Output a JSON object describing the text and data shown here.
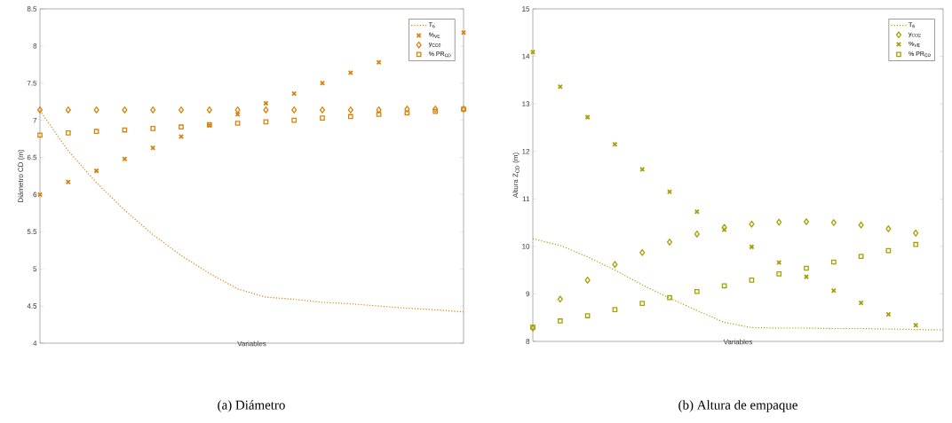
{
  "chart_data": [
    {
      "type": "scatter",
      "xlabel": "Variables",
      "ylabel": "Diámetro CD (m)",
      "annotations": [
        "(a) Diámetro"
      ],
      "categories": [
        null,
        null,
        null,
        null,
        null,
        null,
        null,
        null,
        null,
        null,
        null,
        null,
        null,
        null,
        null,
        null
      ],
      "ylim": [
        4,
        8.5
      ],
      "yticks": [
        4,
        4.5,
        5,
        5.5,
        6,
        6.5,
        7,
        7.5,
        8,
        8.5
      ],
      "grid": false,
      "legend": "top right",
      "series": [
        {
          "name": "T$_{6}$",
          "type": "line",
          "marker": "none",
          "line_style": "dotted",
          "color": "#d9820a",
          "values": [
            7.13,
            6.59,
            6.16,
            5.79,
            5.46,
            5.18,
            4.94,
            4.73,
            4.62,
            4.59,
            4.55,
            4.53,
            4.5,
            4.47,
            4.45,
            4.42
          ]
        },
        {
          "name": "%$_{VE}$",
          "marker": "cross",
          "color": "#d9820a",
          "values": [
            6.0,
            6.17,
            6.32,
            6.48,
            6.63,
            6.78,
            6.93,
            7.08,
            7.23,
            7.36,
            7.5,
            7.64,
            7.78,
            null,
            null,
            8.18
          ]
        },
        {
          "name": "y$_{CO2}$",
          "marker": "diamond",
          "color": "#d9820a",
          "values": [
            7.14,
            7.14,
            7.14,
            7.14,
            7.14,
            7.14,
            7.14,
            7.14,
            7.14,
            7.14,
            7.14,
            7.14,
            7.14,
            7.15,
            7.15,
            7.15
          ]
        },
        {
          "name": "% PR$_{CD}$",
          "marker": "square",
          "color": "#d9820a",
          "values": [
            6.8,
            6.83,
            6.85,
            6.87,
            6.89,
            6.91,
            6.94,
            6.96,
            6.98,
            7.0,
            7.03,
            7.05,
            7.08,
            7.1,
            7.12,
            7.15
          ]
        }
      ]
    },
    {
      "type": "scatter",
      "xlabel": "Variables",
      "ylabel": "Altura Z$_{CD}$ (m)",
      "annotations": [
        "(b) Altura de empaque"
      ],
      "categories": [
        null,
        null,
        null,
        null,
        null,
        null,
        null,
        null,
        null,
        null,
        null,
        null,
        null,
        null,
        null,
        null
      ],
      "ylim": [
        8,
        15
      ],
      "yticks": [
        8,
        9,
        10,
        11,
        12,
        13,
        14,
        15
      ],
      "grid": false,
      "legend": "top right",
      "series": [
        {
          "name": "T$_{6}$",
          "type": "line",
          "marker": "none",
          "line_style": "dotted",
          "color": "#a6a000",
          "values": [
            10.16,
            10.02,
            9.78,
            9.5,
            9.19,
            8.91,
            8.65,
            8.4,
            8.29,
            8.28,
            8.28,
            8.27,
            8.27,
            8.26,
            8.25,
            8.24
          ]
        },
        {
          "name": "y$_{CO2}$",
          "marker": "diamond",
          "color": "#a6a000",
          "values": [
            8.28,
            8.89,
            9.29,
            9.62,
            9.87,
            10.09,
            10.26,
            10.4,
            10.47,
            10.51,
            10.52,
            10.5,
            10.45,
            10.37,
            10.28,
            null
          ]
        },
        {
          "name": "%$_{VE}$",
          "marker": "cross",
          "color": "#a6a000",
          "values": [
            14.09,
            13.36,
            12.72,
            12.15,
            11.62,
            11.15,
            10.73,
            10.35,
            9.99,
            9.66,
            9.36,
            9.07,
            8.81,
            8.57,
            8.34,
            null
          ]
        },
        {
          "name": "% PR$_{CD}$",
          "marker": "square",
          "color": "#a6a000",
          "values": [
            8.3,
            8.43,
            8.54,
            8.67,
            8.8,
            8.92,
            9.05,
            9.17,
            9.29,
            9.42,
            9.54,
            9.67,
            9.79,
            9.91,
            10.04,
            null
          ]
        }
      ]
    }
  ]
}
